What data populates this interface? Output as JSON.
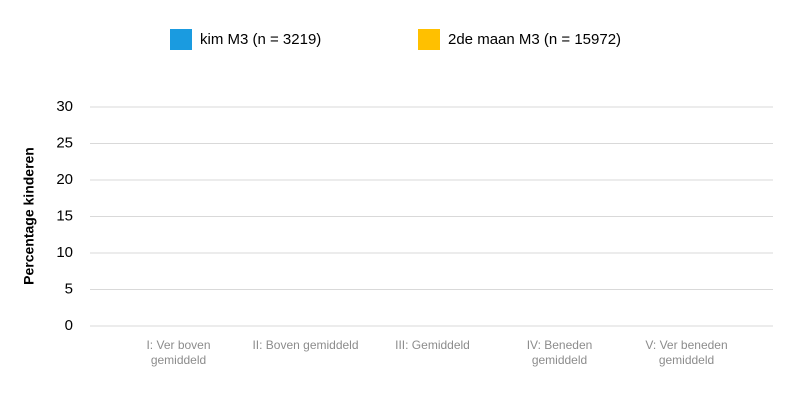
{
  "chart_data": {
    "type": "bar",
    "y_label": "Percentage kinderen",
    "categories": [
      "I: Ver boven gemiddeld",
      "II: Boven gemiddeld",
      "III: Gemiddeld",
      "IV: Beneden gemiddeld",
      "V: Ver beneden gemiddeld"
    ],
    "series": [
      {
        "name": "kim M3 (n = 3219)",
        "color": "#1a9be0",
        "values": [
          null,
          null,
          null,
          null,
          null
        ]
      },
      {
        "name": "2de maan M3 (n = 15972)",
        "color": "#ffc000",
        "values": [
          null,
          null,
          null,
          null,
          null
        ]
      }
    ],
    "ylim": [
      0,
      30
    ],
    "yticks": [
      0,
      5,
      10,
      15,
      20,
      25,
      30
    ],
    "grid": true,
    "legend": "top"
  }
}
